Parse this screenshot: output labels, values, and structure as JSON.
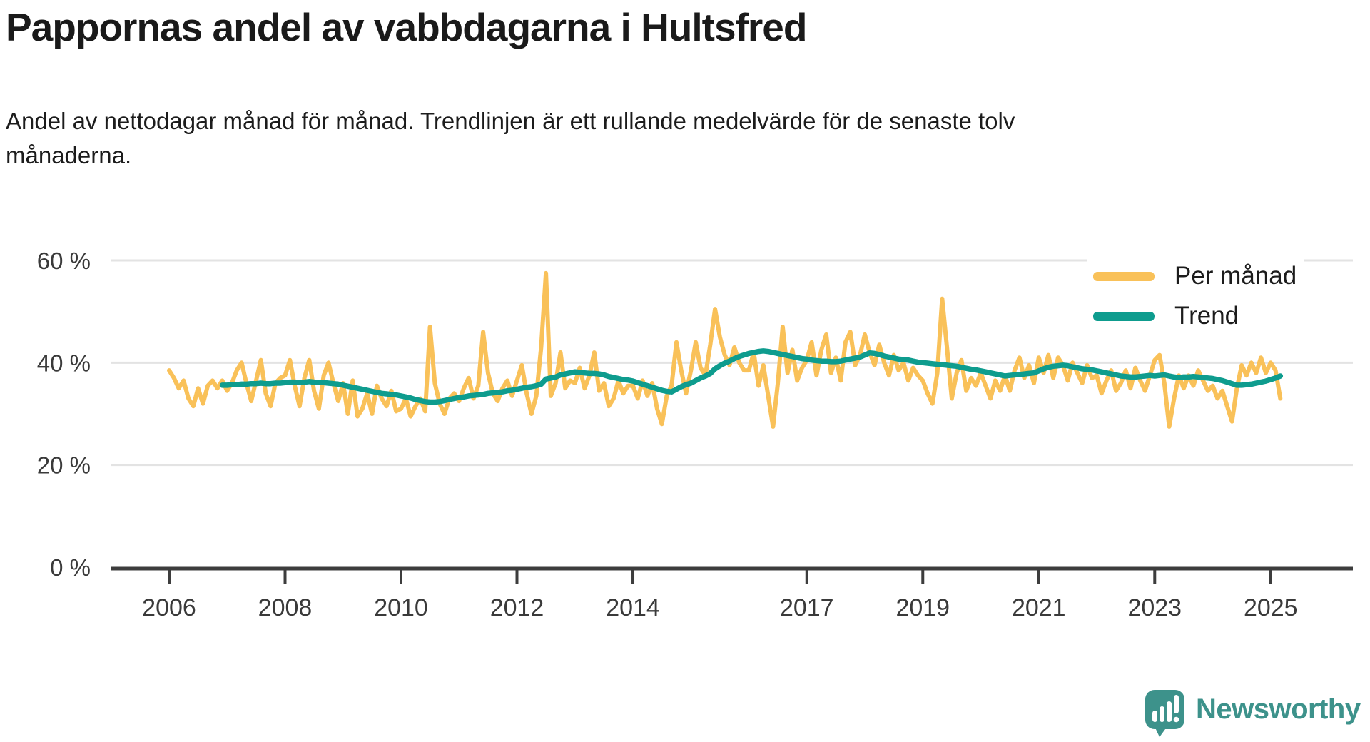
{
  "chart_data": {
    "type": "line",
    "title": "Pappornas andel av vabbdagarna i Hultsfred",
    "subtitle": "Andel av nettodagar månad för månad. Trendlinjen är ett rullande medelvärde för de senaste tolv månaderna.",
    "unit": "percent",
    "x_start_month": "2006-01",
    "x_end_month": "2025-03",
    "x_ticks": [
      2006,
      2008,
      2010,
      2012,
      2014,
      2017,
      2019,
      2021,
      2023,
      2025
    ],
    "y_ticks": [
      {
        "value": 0,
        "label": "0 %"
      },
      {
        "value": 20,
        "label": "20 %"
      },
      {
        "value": 40,
        "label": "40 %"
      },
      {
        "value": 60,
        "label": "60 %"
      }
    ],
    "ylim": [
      0,
      62
    ],
    "grid": "horizontal",
    "legend_position": "top-right",
    "series": [
      {
        "name": "Per månad",
        "color": "#f9c159",
        "start_index": 0,
        "values": [
          38.5,
          37,
          35,
          36.5,
          33,
          31.5,
          35,
          32,
          35.5,
          36.5,
          35,
          36.5,
          34.5,
          36,
          38.5,
          40,
          36,
          32.5,
          36.5,
          40.5,
          34,
          31.5,
          36,
          37,
          37.5,
          40.5,
          35.5,
          31.5,
          37,
          40.5,
          34.5,
          31,
          37.5,
          40,
          36,
          32.5,
          36,
          30,
          36.5,
          29.5,
          31,
          34,
          30,
          35.5,
          33,
          31.5,
          34.5,
          30.5,
          31,
          33,
          29.5,
          31.5,
          33,
          30.5,
          47,
          36,
          32,
          30,
          33,
          34,
          32.5,
          35,
          37,
          33,
          35.5,
          46,
          38,
          34,
          32.5,
          35,
          36.5,
          33.5,
          36.5,
          39.5,
          34,
          30,
          33.5,
          43,
          57.5,
          33.5,
          36,
          42,
          35,
          36.5,
          36,
          39,
          35,
          37.5,
          42,
          34.5,
          36,
          31.5,
          33,
          36.5,
          34,
          35.5,
          35.5,
          33,
          36.5,
          33.5,
          36,
          31,
          28,
          33.5,
          35.5,
          44,
          38.5,
          34,
          38.5,
          44,
          39,
          37.5,
          43.5,
          50.5,
          45,
          41.5,
          39.5,
          43,
          40,
          38.5,
          38.5,
          42,
          35.5,
          39.5,
          33.5,
          27.5,
          36,
          47,
          38,
          42.5,
          36.5,
          39,
          40.5,
          44,
          37.5,
          42.5,
          45.5,
          38,
          41,
          36.5,
          44,
          46,
          39.5,
          41.5,
          45.5,
          42,
          39.5,
          43.5,
          40,
          37.5,
          41.5,
          38.5,
          40,
          36.5,
          39,
          37.5,
          36.5,
          34,
          32,
          38,
          52.5,
          43,
          33,
          38,
          40.5,
          34.5,
          37,
          35.5,
          38,
          35.5,
          33,
          36.5,
          34.5,
          37.5,
          34.5,
          38.5,
          41,
          37,
          39.5,
          36,
          41,
          38,
          41.5,
          37,
          41,
          39.5,
          36.5,
          40,
          38,
          36,
          39.5,
          37,
          37.5,
          34,
          36.5,
          38.5,
          34.5,
          36,
          38.5,
          35,
          39,
          36.5,
          34.5,
          37.5,
          40.5,
          41.5,
          36,
          27.5,
          33,
          37.5,
          35,
          37.5,
          35.5,
          38.5,
          36.5,
          34.5,
          35.5,
          33,
          34.5,
          31.5,
          28.5,
          35,
          39.5,
          37.5,
          40,
          38,
          41,
          38,
          40,
          38.5,
          33
        ]
      },
      {
        "name": "Trend",
        "color": "#0e9c8e",
        "start_index": 11,
        "values": [
          35.6,
          35.6,
          35.7,
          35.7,
          35.8,
          35.8,
          35.9,
          35.9,
          36,
          35.9,
          35.9,
          36,
          36,
          36.1,
          36.2,
          36.2,
          36.1,
          36.2,
          36.3,
          36.2,
          36.1,
          36.1,
          36,
          35.9,
          35.8,
          35.6,
          35.4,
          35.2,
          35,
          34.8,
          34.6,
          34.4,
          34.2,
          34,
          33.9,
          33.8,
          33.7,
          33.5,
          33.3,
          33.1,
          32.8,
          32.6,
          32.4,
          32.3,
          32.3,
          32.4,
          32.6,
          32.8,
          33,
          33.2,
          33.3,
          33.5,
          33.6,
          33.7,
          33.8,
          34,
          34.1,
          34.2,
          34.3,
          34.5,
          34.6,
          34.8,
          35,
          35.2,
          35.3,
          35.5,
          35.8,
          36.8,
          37,
          37.2,
          37.6,
          37.8,
          38,
          38.2,
          38.1,
          38,
          37.9,
          37.9,
          37.8,
          37.6,
          37.3,
          37.1,
          36.9,
          36.7,
          36.6,
          36.4,
          36.1,
          35.8,
          35.5,
          35.2,
          34.9,
          34.6,
          34.4,
          34.3,
          34.8,
          35.3,
          35.7,
          36,
          36.5,
          37,
          37.4,
          37.9,
          38.8,
          39.4,
          39.9,
          40.3,
          40.8,
          41.2,
          41.5,
          41.8,
          42,
          42.2,
          42.3,
          42.2,
          42,
          41.8,
          41.6,
          41.4,
          41.2,
          41,
          40.8,
          40.7,
          40.5,
          40.4,
          40.3,
          40.3,
          40.2,
          40.2,
          40.3,
          40.5,
          40.7,
          40.9,
          41.1,
          41.5,
          41.9,
          41.8,
          41.6,
          41.3,
          41.1,
          40.9,
          40.7,
          40.6,
          40.5,
          40.3,
          40.1,
          40,
          39.9,
          39.8,
          39.7,
          39.6,
          39.5,
          39.4,
          39.3,
          39.1,
          38.9,
          38.7,
          38.6,
          38.4,
          38.2,
          38,
          37.8,
          37.6,
          37.4,
          37.5,
          37.6,
          37.7,
          37.8,
          37.9,
          38,
          38.4,
          38.8,
          39.1,
          39.3,
          39.4,
          39.5,
          39.4,
          39.2,
          39,
          38.8,
          38.7,
          38.6,
          38.4,
          38.2,
          38,
          37.8,
          37.6,
          37.4,
          37.3,
          37.2,
          37.2,
          37.3,
          37.4,
          37.5,
          37.4,
          37.5,
          37.6,
          37.4,
          37.2,
          37.1,
          37.2,
          37.2,
          37.3,
          37.2,
          37.1,
          37,
          36.9,
          36.7,
          36.5,
          36.2,
          35.9,
          35.6,
          35.6,
          35.7,
          35.8,
          36,
          36.2,
          36.4,
          36.7,
          37,
          37.4
        ]
      }
    ]
  },
  "footer": {
    "brand": "Newsworthy",
    "brand_color": "#3d928b"
  }
}
